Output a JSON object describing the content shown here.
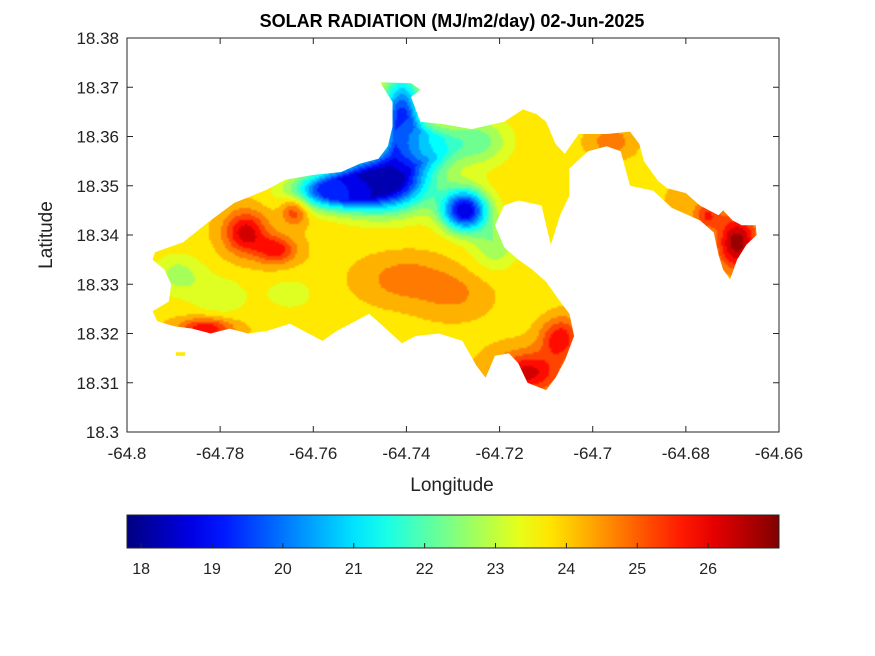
{
  "chart_data": {
    "type": "heatmap",
    "title": "SOLAR RADIATION (MJ/m2/day) 02-Jun-2025",
    "xlabel": "Longitude",
    "ylabel": "Latitude",
    "xlim": [
      -64.8,
      -64.66
    ],
    "ylim": [
      18.3,
      18.38
    ],
    "xticks": [
      -64.8,
      -64.78,
      -64.76,
      -64.74,
      -64.72,
      -64.7,
      -64.68,
      -64.66
    ],
    "xtick_labels": [
      "-64.8",
      "-64.78",
      "-64.76",
      "-64.74",
      "-64.72",
      "-64.7",
      "-64.68",
      "-64.66"
    ],
    "yticks": [
      18.3,
      18.31,
      18.32,
      18.33,
      18.34,
      18.35,
      18.36,
      18.37,
      18.38
    ],
    "ytick_labels": [
      "18.3",
      "18.31",
      "18.32",
      "18.33",
      "18.34",
      "18.35",
      "18.36",
      "18.37",
      "18.38"
    ],
    "colormap": "jet",
    "colorbar": {
      "range": [
        17.8,
        27.0
      ],
      "ticks": [
        18,
        19,
        20,
        21,
        22,
        23,
        24,
        25,
        26
      ],
      "tick_labels": [
        "18",
        "19",
        "20",
        "21",
        "22",
        "23",
        "24",
        "25",
        "26"
      ],
      "placement": "bottom"
    },
    "grid": false,
    "regions": [
      {
        "name": "main",
        "outline": [
          [
            -64.794,
            18.3365
          ],
          [
            -64.788,
            18.3385
          ],
          [
            -64.782,
            18.343
          ],
          [
            -64.777,
            18.3465
          ],
          [
            -64.77,
            18.3492
          ],
          [
            -64.766,
            18.3512
          ],
          [
            -64.76,
            18.3522
          ],
          [
            -64.754,
            18.3528
          ],
          [
            -64.75,
            18.3545
          ],
          [
            -64.746,
            18.3555
          ],
          [
            -64.744,
            18.358
          ],
          [
            -64.743,
            18.362
          ],
          [
            -64.743,
            18.367
          ],
          [
            -64.745,
            18.37
          ],
          [
            -64.7455,
            18.371
          ],
          [
            -64.739,
            18.3708
          ],
          [
            -64.737,
            18.3695
          ],
          [
            -64.739,
            18.368
          ],
          [
            -64.737,
            18.363
          ],
          [
            -64.732,
            18.3625
          ],
          [
            -64.726,
            18.3615
          ],
          [
            -64.719,
            18.363
          ],
          [
            -64.715,
            18.3655
          ],
          [
            -64.712,
            18.3645
          ],
          [
            -64.71,
            18.363
          ],
          [
            -64.708,
            18.3585
          ],
          [
            -64.706,
            18.3565
          ],
          [
            -64.703,
            18.3605
          ],
          [
            -64.697,
            18.3605
          ],
          [
            -64.692,
            18.361
          ],
          [
            -64.69,
            18.3585
          ],
          [
            -64.689,
            18.355
          ],
          [
            -64.686,
            18.351
          ],
          [
            -64.684,
            18.3495
          ],
          [
            -64.68,
            18.3485
          ],
          [
            -64.677,
            18.346
          ],
          [
            -64.675,
            18.345
          ],
          [
            -64.673,
            18.344
          ],
          [
            -64.672,
            18.345
          ],
          [
            -64.67,
            18.343
          ],
          [
            -64.668,
            18.342
          ],
          [
            -64.665,
            18.342
          ],
          [
            -64.6648,
            18.34
          ],
          [
            -64.667,
            18.338
          ],
          [
            -64.669,
            18.335
          ],
          [
            -64.6705,
            18.331
          ],
          [
            -64.672,
            18.333
          ],
          [
            -64.673,
            18.336
          ],
          [
            -64.674,
            18.3405
          ],
          [
            -64.677,
            18.343
          ],
          [
            -64.683,
            18.3455
          ],
          [
            -64.687,
            18.349
          ],
          [
            -64.692,
            18.35
          ],
          [
            -64.694,
            18.357
          ],
          [
            -64.697,
            18.358
          ],
          [
            -64.701,
            18.357
          ],
          [
            -64.705,
            18.3535
          ],
          [
            -64.705,
            18.348
          ],
          [
            -64.707,
            18.344
          ],
          [
            -64.709,
            18.338
          ],
          [
            -64.711,
            18.346
          ],
          [
            -64.716,
            18.347
          ],
          [
            -64.719,
            18.346
          ],
          [
            -64.721,
            18.342
          ],
          [
            -64.719,
            18.3375
          ],
          [
            -64.716,
            18.335
          ],
          [
            -64.713,
            18.333
          ],
          [
            -64.71,
            18.3305
          ],
          [
            -64.707,
            18.3265
          ],
          [
            -64.705,
            18.324
          ],
          [
            -64.704,
            18.3195
          ],
          [
            -64.706,
            18.3145
          ],
          [
            -64.708,
            18.311
          ],
          [
            -64.71,
            18.3085
          ],
          [
            -64.714,
            18.31
          ],
          [
            -64.716,
            18.314
          ],
          [
            -64.718,
            18.316
          ],
          [
            -64.721,
            18.3155
          ],
          [
            -64.723,
            18.311
          ],
          [
            -64.725,
            18.3135
          ],
          [
            -64.728,
            18.3185
          ],
          [
            -64.733,
            18.32
          ],
          [
            -64.738,
            18.3195
          ],
          [
            -64.741,
            18.318
          ],
          [
            -64.745,
            18.3215
          ],
          [
            -64.748,
            18.324
          ],
          [
            -64.751,
            18.3225
          ],
          [
            -64.755,
            18.3205
          ],
          [
            -64.758,
            18.3185
          ],
          [
            -64.761,
            18.32
          ],
          [
            -64.765,
            18.322
          ],
          [
            -64.77,
            18.3205
          ],
          [
            -64.774,
            18.32
          ],
          [
            -64.778,
            18.321
          ],
          [
            -64.782,
            18.32
          ],
          [
            -64.786,
            18.321
          ],
          [
            -64.79,
            18.3215
          ],
          [
            -64.7935,
            18.3225
          ],
          [
            -64.7945,
            18.3245
          ],
          [
            -64.791,
            18.3265
          ],
          [
            -64.7905,
            18.33
          ],
          [
            -64.792,
            18.333
          ],
          [
            -64.7945,
            18.335
          ]
        ]
      },
      {
        "name": "islet",
        "outline": [
          [
            -64.7895,
            18.3155
          ],
          [
            -64.7875,
            18.3155
          ],
          [
            -64.7875,
            18.3162
          ],
          [
            -64.7895,
            18.3162
          ]
        ]
      }
    ],
    "hotspots": [
      {
        "x": -64.745,
        "y": 18.351,
        "value": 18.0,
        "spread": [
          0.007,
          0.0042
        ]
      },
      {
        "x": -64.7275,
        "y": 18.345,
        "value": 18.5,
        "spread": [
          0.0035,
          0.003
        ]
      },
      {
        "x": -64.741,
        "y": 18.364,
        "value": 19.3,
        "spread": [
          0.003,
          0.006
        ]
      },
      {
        "x": -64.756,
        "y": 18.349,
        "value": 19.6,
        "spread": [
          0.006,
          0.0025
        ]
      },
      {
        "x": -64.7355,
        "y": 18.358,
        "value": 21.2,
        "spread": [
          0.004,
          0.003
        ]
      },
      {
        "x": -64.725,
        "y": 18.359,
        "value": 22.2,
        "spread": [
          0.005,
          0.0035
        ]
      },
      {
        "x": -64.721,
        "y": 18.338,
        "value": 22.6,
        "spread": [
          0.0035,
          0.0035
        ]
      },
      {
        "x": -64.789,
        "y": 18.332,
        "value": 22.8,
        "spread": [
          0.004,
          0.003
        ]
      },
      {
        "x": -64.78,
        "y": 18.3275,
        "value": 23.1,
        "spread": [
          0.0045,
          0.003
        ]
      },
      {
        "x": -64.765,
        "y": 18.328,
        "value": 23.2,
        "spread": [
          0.004,
          0.0025
        ]
      },
      {
        "x": -64.712,
        "y": 18.327,
        "value": 23.7,
        "spread": [
          0.004,
          0.004
        ]
      },
      {
        "x": -64.74,
        "y": 18.331,
        "value": 24.9,
        "spread": [
          0.006,
          0.003
        ]
      },
      {
        "x": -64.73,
        "y": 18.328,
        "value": 24.6,
        "spread": [
          0.005,
          0.003
        ]
      },
      {
        "x": -64.7745,
        "y": 18.3405,
        "value": 26.3,
        "spread": [
          0.0032,
          0.003
        ]
      },
      {
        "x": -64.764,
        "y": 18.345,
        "value": 25.6,
        "spread": [
          0.002,
          0.002
        ]
      },
      {
        "x": -64.768,
        "y": 18.337,
        "value": 25.8,
        "spread": [
          0.003,
          0.002
        ]
      },
      {
        "x": -64.783,
        "y": 18.321,
        "value": 26.0,
        "spread": [
          0.004,
          0.0015
        ]
      },
      {
        "x": -64.714,
        "y": 18.312,
        "value": 26.2,
        "spread": [
          0.005,
          0.003
        ]
      },
      {
        "x": -64.707,
        "y": 18.319,
        "value": 25.9,
        "spread": [
          0.003,
          0.003
        ]
      },
      {
        "x": -64.696,
        "y": 18.359,
        "value": 24.9,
        "spread": [
          0.003,
          0.002
        ]
      },
      {
        "x": -64.688,
        "y": 18.3505,
        "value": 23.6,
        "spread": [
          0.003,
          0.002
        ]
      },
      {
        "x": -64.6815,
        "y": 18.3475,
        "value": 24.4,
        "spread": [
          0.002,
          0.002
        ]
      },
      {
        "x": -64.6755,
        "y": 18.344,
        "value": 25.5,
        "spread": [
          0.002,
          0.002
        ]
      },
      {
        "x": -64.669,
        "y": 18.3385,
        "value": 26.8,
        "spread": [
          0.003,
          0.004
        ]
      },
      {
        "x": -64.7075,
        "y": 18.3455,
        "value": 23.8,
        "spread": [
          0.002,
          0.002
        ]
      }
    ],
    "base_value": 23.9
  }
}
